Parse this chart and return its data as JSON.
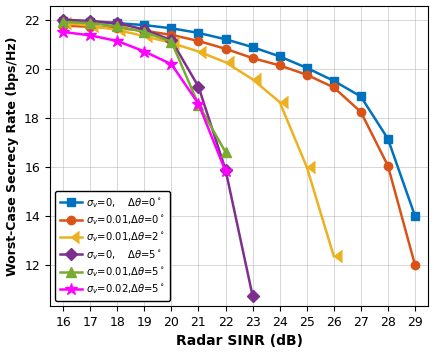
{
  "xlabel": "Radar SINR (dB)",
  "ylabel": "Worst-Case Secrecy Rate (bps/Hz)",
  "xlim": [
    15.5,
    29.5
  ],
  "ylim": [
    10.3,
    22.6
  ],
  "xticks": [
    16,
    17,
    18,
    19,
    20,
    21,
    22,
    23,
    24,
    25,
    26,
    27,
    28,
    29
  ],
  "yticks": [
    12,
    14,
    16,
    18,
    20,
    22
  ],
  "series": [
    {
      "label_parts": [
        "$\\sigma_v$=0,    ",
        "$\\Delta\\theta$=0$^\\circ$"
      ],
      "color": "#0072BD",
      "marker": "s",
      "markersize": 6,
      "x": [
        16,
        17,
        18,
        19,
        20,
        21,
        22,
        23,
        24,
        25,
        26,
        27,
        28,
        29
      ],
      "y": [
        21.97,
        21.93,
        21.88,
        21.8,
        21.67,
        21.48,
        21.22,
        20.9,
        20.52,
        20.05,
        19.52,
        18.88,
        17.15,
        14.0
      ]
    },
    {
      "label_parts": [
        "$\\sigma_v$=0.01,",
        "$\\Delta\\theta$=0$^\\circ$"
      ],
      "color": "#D95319",
      "marker": "o",
      "markersize": 6,
      "x": [
        16,
        17,
        18,
        19,
        20,
        21,
        22,
        23,
        24,
        25,
        26,
        27,
        28,
        29
      ],
      "y": [
        21.78,
        21.73,
        21.68,
        21.57,
        21.4,
        21.15,
        20.83,
        20.45,
        20.15,
        19.77,
        19.25,
        18.25,
        16.05,
        12.0
      ]
    },
    {
      "label_parts": [
        "$\\sigma_v$=0.01,",
        "$\\Delta\\theta$=2$^\\circ$"
      ],
      "color": "#EDB120",
      "marker": 4,
      "markersize": 8,
      "x": [
        16,
        17,
        18,
        19,
        20,
        21,
        22,
        23,
        24,
        25,
        26
      ],
      "y": [
        21.88,
        21.78,
        21.6,
        21.35,
        21.07,
        20.72,
        20.28,
        19.58,
        18.65,
        16.0,
        12.35
      ]
    },
    {
      "label_parts": [
        "$\\sigma_v$=0,    ",
        "$\\Delta\\theta$=5$^\\circ$"
      ],
      "color": "#7E2F8E",
      "marker": "D",
      "markersize": 6,
      "x": [
        16,
        17,
        18,
        19,
        20,
        21,
        22,
        23
      ],
      "y": [
        22.02,
        21.97,
        21.88,
        21.62,
        21.18,
        19.28,
        15.88,
        10.72
      ]
    },
    {
      "label_parts": [
        "$\\sigma_v$=0.01,",
        "$\\Delta\\theta$=5$^\\circ$"
      ],
      "color": "#77AC30",
      "marker": "^",
      "markersize": 7,
      "x": [
        16,
        17,
        18,
        19,
        20,
        21,
        22
      ],
      "y": [
        21.93,
        21.88,
        21.75,
        21.52,
        21.12,
        18.55,
        16.6
      ]
    },
    {
      "label_parts": [
        "$\\sigma_v$=0.02,",
        "$\\Delta\\theta$=5$^\\circ$"
      ],
      "color": "#FF00FF",
      "marker": "*",
      "markersize": 9,
      "x": [
        16,
        17,
        18,
        19,
        20,
        21,
        22
      ],
      "y": [
        21.52,
        21.38,
        21.15,
        20.72,
        20.2,
        18.58,
        15.82
      ]
    }
  ]
}
